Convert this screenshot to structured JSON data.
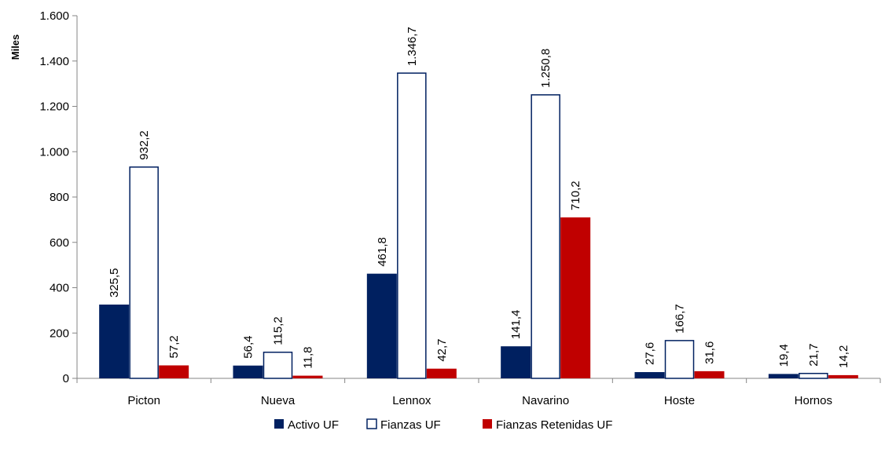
{
  "chart_data": {
    "type": "bar",
    "title": "",
    "xlabel": "",
    "ylabel": "Miles",
    "ylim": [
      0,
      1600
    ],
    "yticks": [
      0,
      200,
      400,
      600,
      800,
      1000,
      1200,
      1400,
      1600
    ],
    "ytick_labels": [
      "0",
      "200",
      "400",
      "600",
      "800",
      "1.000",
      "1.200",
      "1.400",
      "1.600"
    ],
    "categories": [
      "Picton",
      "Nueva",
      "Lennox",
      "Navarino",
      "Hoste",
      "Hornos"
    ],
    "series": [
      {
        "name": "Activo UF",
        "values": [
          325.5,
          56.4,
          461.8,
          141.4,
          27.6,
          19.4
        ],
        "labels": [
          "325,5",
          "56,4",
          "461,8",
          "141,4",
          "27,6",
          "19,4"
        ],
        "fill": "#002060",
        "stroke": "#002060"
      },
      {
        "name": "Fianzas UF",
        "values": [
          932.2,
          115.2,
          1346.7,
          1250.8,
          166.7,
          21.7
        ],
        "labels": [
          "932,2",
          "115,2",
          "1.346,7",
          "1.250,8",
          "166,7",
          "21,7"
        ],
        "fill": "#ffffff",
        "stroke": "#002060"
      },
      {
        "name": "Fianzas Retenidas UF",
        "values": [
          57.2,
          11.8,
          42.7,
          710.2,
          31.6,
          14.2
        ],
        "labels": [
          "57,2",
          "11,8",
          "42,7",
          "710,2",
          "31,6",
          "14,2"
        ],
        "fill": "#c00000",
        "stroke": "#c00000"
      }
    ],
    "legend_position": "bottom",
    "grid": false
  }
}
